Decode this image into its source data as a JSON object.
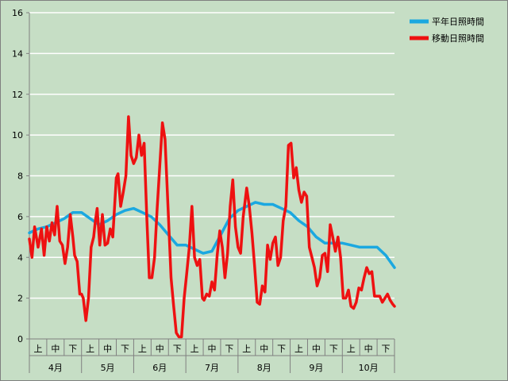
{
  "chart_data": {
    "type": "line",
    "title": "",
    "xlabel": "",
    "ylabel": "",
    "ylim": [
      0,
      16
    ],
    "yticks": [
      "0",
      "2",
      "4",
      "6",
      "8",
      "10",
      "12",
      "14",
      "16"
    ],
    "grid": true,
    "legend_position": "top-right",
    "background_color": "#c6dec5",
    "months": [
      {
        "label": "4月",
        "periods": [
          "上",
          "中",
          "下"
        ]
      },
      {
        "label": "5月",
        "periods": [
          "上",
          "中",
          "下"
        ]
      },
      {
        "label": "6月",
        "periods": [
          "上",
          "中",
          "下"
        ]
      },
      {
        "label": "7月",
        "periods": [
          "上",
          "中",
          "下"
        ]
      },
      {
        "label": "8月",
        "periods": [
          "上",
          "中",
          "下"
        ]
      },
      {
        "label": "9月",
        "periods": [
          "上",
          "中",
          "下"
        ]
      },
      {
        "label": "10月",
        "periods": [
          "上",
          "中",
          "下"
        ]
      }
    ],
    "x_range": [
      0,
      21
    ],
    "series": [
      {
        "name": "平年日照時間",
        "color": "#1ba8e0",
        "x": [
          0,
          0.5,
          1,
          1.5,
          2,
          2.5,
          3,
          3.5,
          4,
          4.5,
          5,
          5.5,
          6,
          6.5,
          7,
          7.5,
          8,
          8.5,
          9,
          9.5,
          10,
          10.5,
          11,
          11.5,
          12,
          12.5,
          13,
          13.5,
          14,
          14.5,
          15,
          15.5,
          16,
          16.5,
          17,
          17.5,
          18,
          18.5,
          19,
          19.5,
          20,
          20.5,
          21
        ],
        "values": [
          5.2,
          5.4,
          5.5,
          5.7,
          5.9,
          6.2,
          6.2,
          5.9,
          5.6,
          5.8,
          6.1,
          6.3,
          6.4,
          6.2,
          6.0,
          5.6,
          5.1,
          4.6,
          4.6,
          4.4,
          4.2,
          4.3,
          5.1,
          5.9,
          6.3,
          6.5,
          6.7,
          6.6,
          6.6,
          6.4,
          6.2,
          5.8,
          5.5,
          5.0,
          4.7,
          4.7,
          4.7,
          4.6,
          4.5,
          4.5,
          4.5,
          4.1,
          3.5
        ]
      },
      {
        "name": "移動日照時間",
        "color": "#ee1111",
        "x": [
          0,
          0.15,
          0.3,
          0.5,
          0.7,
          0.85,
          1.0,
          1.15,
          1.3,
          1.45,
          1.6,
          1.75,
          1.9,
          2.05,
          2.2,
          2.35,
          2.5,
          2.6,
          2.75,
          2.9,
          3.0,
          3.1,
          3.25,
          3.4,
          3.55,
          3.7,
          3.8,
          3.9,
          4.05,
          4.2,
          4.35,
          4.5,
          4.65,
          4.8,
          5.0,
          5.1,
          5.25,
          5.4,
          5.55,
          5.7,
          5.85,
          6.0,
          6.15,
          6.3,
          6.45,
          6.6,
          6.75,
          6.9,
          7.05,
          7.2,
          7.35,
          7.5,
          7.65,
          7.8,
          8.0,
          8.15,
          8.3,
          8.45,
          8.6,
          8.75,
          8.9,
          9.05,
          9.2,
          9.35,
          9.5,
          9.65,
          9.8,
          9.95,
          10.05,
          10.2,
          10.35,
          10.5,
          10.65,
          10.8,
          10.95,
          11.1,
          11.25,
          11.4,
          11.55,
          11.7,
          11.85,
          12.0,
          12.15,
          12.3,
          12.5,
          12.65,
          12.8,
          12.95,
          13.1,
          13.25,
          13.4,
          13.55,
          13.7,
          13.85,
          14.0,
          14.15,
          14.3,
          14.45,
          14.6,
          14.75,
          14.9,
          15.05,
          15.2,
          15.35,
          15.5,
          15.65,
          15.8,
          15.95,
          16.1,
          16.25,
          16.4,
          16.55,
          16.7,
          16.85,
          17.0,
          17.15,
          17.3,
          17.45,
          17.6,
          17.75,
          17.9,
          18.05,
          18.2,
          18.35,
          18.5,
          18.65,
          18.8,
          18.95,
          19.1,
          19.25,
          19.4,
          19.55,
          19.7,
          19.85,
          20.0,
          20.15,
          20.3,
          20.45,
          20.6,
          20.75,
          20.9,
          21.0
        ],
        "values": [
          4.9,
          4.0,
          5.5,
          4.5,
          5.4,
          4.1,
          5.5,
          4.8,
          5.7,
          5.1,
          6.5,
          4.8,
          4.6,
          3.7,
          4.5,
          6.1,
          5.0,
          4.1,
          3.8,
          2.2,
          2.2,
          2.0,
          0.9,
          2.0,
          4.5,
          5.0,
          5.8,
          6.4,
          4.6,
          6.1,
          4.6,
          4.7,
          5.4,
          5.0,
          7.9,
          8.1,
          6.5,
          7.2,
          8.0,
          10.9,
          9.0,
          8.6,
          8.9,
          10.0,
          9.0,
          9.6,
          6.0,
          3.0,
          3.0,
          4.0,
          6.4,
          8.5,
          10.6,
          9.8,
          6.0,
          3.0,
          1.6,
          0.3,
          0.1,
          0.1,
          2.0,
          3.2,
          4.5,
          6.5,
          4.0,
          3.6,
          3.9,
          2.0,
          1.9,
          2.2,
          2.1,
          2.8,
          2.4,
          4.1,
          5.3,
          4.5,
          3.0,
          4.2,
          6.5,
          7.8,
          5.5,
          4.5,
          4.2,
          6.0,
          7.4,
          6.5,
          5.2,
          3.6,
          1.8,
          1.7,
          2.6,
          2.3,
          4.6,
          3.9,
          4.7,
          5.0,
          3.6,
          4.0,
          5.8,
          6.5,
          9.5,
          9.6,
          7.9,
          8.4,
          7.3,
          6.7,
          7.2,
          7.0,
          4.5,
          4.0,
          3.5,
          2.6,
          3.0,
          4.1,
          4.2,
          3.3,
          5.6,
          5.0,
          4.3,
          5.0,
          4.0,
          2.0,
          2.0,
          2.4,
          1.6,
          1.5,
          1.8,
          2.5,
          2.4,
          3.0,
          3.5,
          3.2,
          3.3,
          2.1,
          2.1,
          2.1,
          1.8,
          2.0,
          2.2,
          1.9,
          1.7,
          1.6
        ]
      }
    ]
  }
}
